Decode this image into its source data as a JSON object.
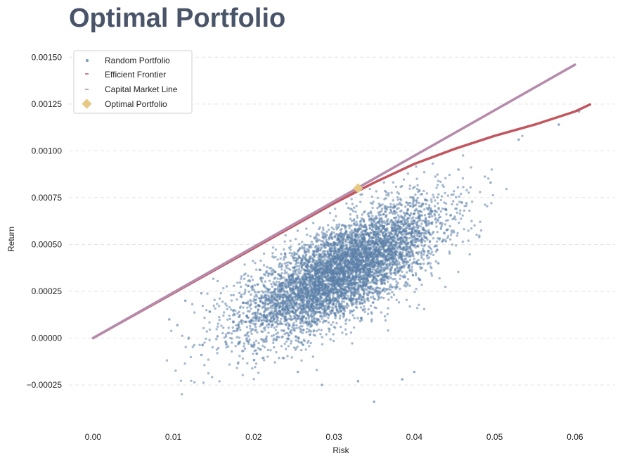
{
  "chart_data": {
    "type": "scatter",
    "title": "Optimal Portfolio",
    "xlabel": "Risk",
    "ylabel": "Return",
    "xlim": [
      -0.003,
      0.065
    ],
    "ylim": [
      -0.00043,
      0.00158
    ],
    "x_ticks": [
      0.0,
      0.01,
      0.02,
      0.03,
      0.04,
      0.05,
      0.06
    ],
    "x_tick_labels": [
      "0.00",
      "0.01",
      "0.02",
      "0.03",
      "0.04",
      "0.05",
      "0.06"
    ],
    "y_ticks": [
      -0.00025,
      0.0,
      0.00025,
      0.0005,
      0.00075,
      0.001,
      0.00125,
      0.0015
    ],
    "y_tick_labels": [
      "−0.00025",
      "0.00000",
      "0.00025",
      "0.00050",
      "0.00075",
      "0.00100",
      "0.00125",
      "0.00150"
    ],
    "grid": "horizontal dashed",
    "legend_position": "top-left",
    "colors": {
      "title": "#4a5468",
      "random": "#5b7fa8",
      "frontier": "#c2555e",
      "cml": "#b68aab",
      "optimal": "#e6c983",
      "grid": "#e3e3e3"
    },
    "series": [
      {
        "name": "Random Portfolio",
        "kind": "scatter-cloud",
        "sample_points": [
          [
            0.035,
            -0.00034
          ],
          [
            0.058,
            0.00114
          ],
          [
            0.053,
            0.00106
          ],
          [
            0.0135,
            -9e-05
          ],
          [
            0.0155,
            1e-05
          ],
          [
            0.0095,
            0.0001
          ],
          [
            0.0115,
            0.0002
          ],
          [
            0.0135,
            0.00024
          ],
          [
            0.0605,
            0.00121
          ],
          [
            0.0455,
            0.0009
          ],
          [
            0.0495,
            0.00083
          ],
          [
            0.0465,
            0.00072
          ],
          [
            0.0285,
            -0.00025
          ],
          [
            0.033,
            -0.00023
          ],
          [
            0.0385,
            -0.00022
          ],
          [
            0.04,
            -0.00018
          ],
          [
            0.0105,
            7e-05
          ],
          [
            0.0255,
            -0.00018
          ],
          [
            0.043,
            0.0004
          ]
        ]
      },
      {
        "name": "Efficient Frontier",
        "x": [
          0.0,
          0.005,
          0.01,
          0.015,
          0.02,
          0.025,
          0.03,
          0.035,
          0.04,
          0.045,
          0.05,
          0.055,
          0.06,
          0.062
        ],
        "y": [
          0.0,
          0.00012,
          0.00024,
          0.00036,
          0.00048,
          0.0006,
          0.00072,
          0.00083,
          0.00093,
          0.00101,
          0.00108,
          0.00114,
          0.00121,
          0.00125
        ]
      },
      {
        "name": "Capital Market Line",
        "x": [
          0.0,
          0.06
        ],
        "y": [
          0.0,
          0.00146
        ]
      },
      {
        "name": "Optimal Portfolio",
        "x": [
          0.033
        ],
        "y": [
          0.0008
        ]
      }
    ]
  }
}
